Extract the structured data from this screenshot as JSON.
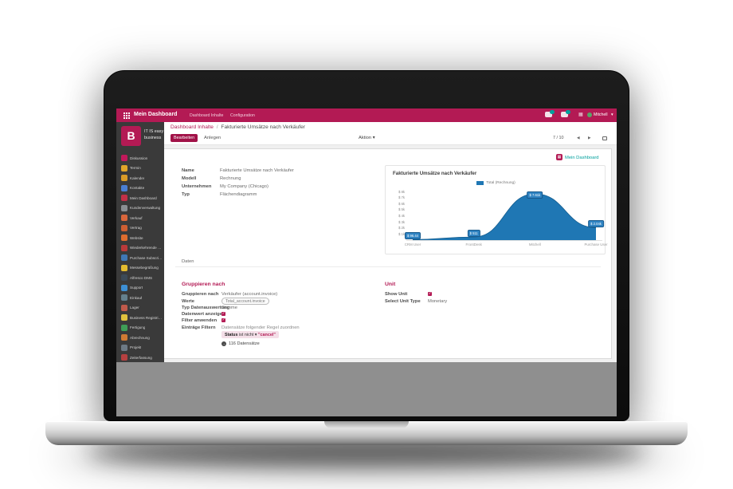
{
  "topbar": {
    "title": "Mein Dashboard",
    "menus": [
      {
        "label": "Dashboard Inhalte"
      },
      {
        "label": "Configuration"
      }
    ],
    "user": {
      "name": "Mitchell"
    }
  },
  "control_bar": {
    "breadcrumb": {
      "parent": "Dashboard Inhalte",
      "separator": "/",
      "current": "Fakturierte Umsätze nach Verkäufer"
    },
    "edit_button": "Bearbeiten",
    "create_button": "Anlegen",
    "action_menu": "Aktion",
    "pager": "7 / 10"
  },
  "sidebar": {
    "logo_letter": "B",
    "logo_line1": "IT IS easy",
    "logo_line2": "business",
    "items": [
      {
        "label": "Diskussion",
        "color": "#c2185b"
      },
      {
        "label": "Termin",
        "color": "#e0a52a"
      },
      {
        "label": "Kalender",
        "color": "#d99b27"
      },
      {
        "label": "Kontakte",
        "color": "#4a7fd4"
      },
      {
        "label": "Mein Dashboard",
        "color": "#c13047"
      },
      {
        "label": "Kundenverwaltung",
        "color": "#8a8f93"
      },
      {
        "label": "Verkauf",
        "color": "#d9663c"
      },
      {
        "label": "Vertrag",
        "color": "#cc5f33"
      },
      {
        "label": "Website",
        "color": "#de6d2f"
      },
      {
        "label": "Wiederkehrende Verkäufe",
        "color": "#b93a3a"
      },
      {
        "label": "Purchase Subscription",
        "color": "#3f78b5"
      },
      {
        "label": "Messebegrüßung",
        "color": "#e3bb2f"
      },
      {
        "label": "Alfresco DMS",
        "color": "#3c4a57"
      },
      {
        "label": "Support",
        "color": "#3d8fd4"
      },
      {
        "label": "Einkauf",
        "color": "#64808e"
      },
      {
        "label": "Lager",
        "color": "#c05a4b"
      },
      {
        "label": "Business Registrierung",
        "color": "#e0c23e"
      },
      {
        "label": "Fertigung",
        "color": "#3f9e57"
      },
      {
        "label": "Abrechnung",
        "color": "#d07a33"
      },
      {
        "label": "Projekt",
        "color": "#6d7a85"
      },
      {
        "label": "Zeiterfassung",
        "color": "#b54040"
      }
    ]
  },
  "form": {
    "dashboard_link": "Mein Dashboard",
    "fields": [
      {
        "label": "Name",
        "value": "Fakturierte Umsätze nach Verkäufer"
      },
      {
        "label": "Modell",
        "value": "Rechnung"
      },
      {
        "label": "Unternehmen",
        "value": "My Company (Chicago)"
      },
      {
        "label": "Typ",
        "value": "Flächendiagramm"
      }
    ],
    "tab": "Daten",
    "group_section": {
      "heading": "Gruppieren nach",
      "rows": [
        {
          "label": "Gruppieren nach",
          "value": "Verkäufer (account.invoice)"
        },
        {
          "label": "Werte",
          "tag": "Total_account.invoice"
        },
        {
          "label": "Typ Datenauswertung",
          "value": "Summe"
        },
        {
          "label": "Datenwert anzeigen",
          "checked": true
        },
        {
          "label": "Filter anwenden",
          "checked": true
        },
        {
          "label": "Einträge Filtern",
          "value": "Datensätze folgender Regel zuordnen"
        }
      ],
      "domain_pill": {
        "field": "Status",
        "operator": "ist nicht",
        "value": "\"cancel\""
      },
      "record_count": "116 Datensätze"
    },
    "unit_section": {
      "heading": "Unit",
      "rows": [
        {
          "label": "Show Unit",
          "checked": true
        },
        {
          "label": "Select Unit Type",
          "value": "Monetary"
        }
      ]
    }
  },
  "chart_data": {
    "type": "area",
    "title": "Fakturierte Umsätze nach Verkäufer",
    "legend": [
      "Total (Rechnung)"
    ],
    "legend_position": "top",
    "categories": [
      "CRM User",
      "FrontDesk",
      "Mitchell",
      "Purchase User"
    ],
    "values": [
      96.44,
      511,
      7610,
      2040
    ],
    "point_labels": [
      "$ 96.44",
      "$ 511",
      "$ 7.61k",
      "$ 2.04k"
    ],
    "xlabel": "",
    "ylabel": "",
    "ylim": [
      0,
      8000
    ],
    "yticks": [
      "$ 8k",
      "$ 7k",
      "$ 6k",
      "$ 5k",
      "$ 4k",
      "$ 3k",
      "$ 2k",
      "$ 1k"
    ],
    "ytick_values": [
      8000,
      7000,
      6000,
      5000,
      4000,
      3000,
      2000,
      1000
    ],
    "grid": false,
    "color": "#1f77b4"
  },
  "icons": {
    "caret_down": "▾",
    "prev": "◀",
    "next": "▶",
    "record_arrow": "→",
    "dash_icon_glyph": "▦",
    "dev_icon_glyph": "▦"
  },
  "colors": {
    "primary": "#b31a54",
    "teal": "#00a09d",
    "chart_blue": "#1f77b4"
  }
}
